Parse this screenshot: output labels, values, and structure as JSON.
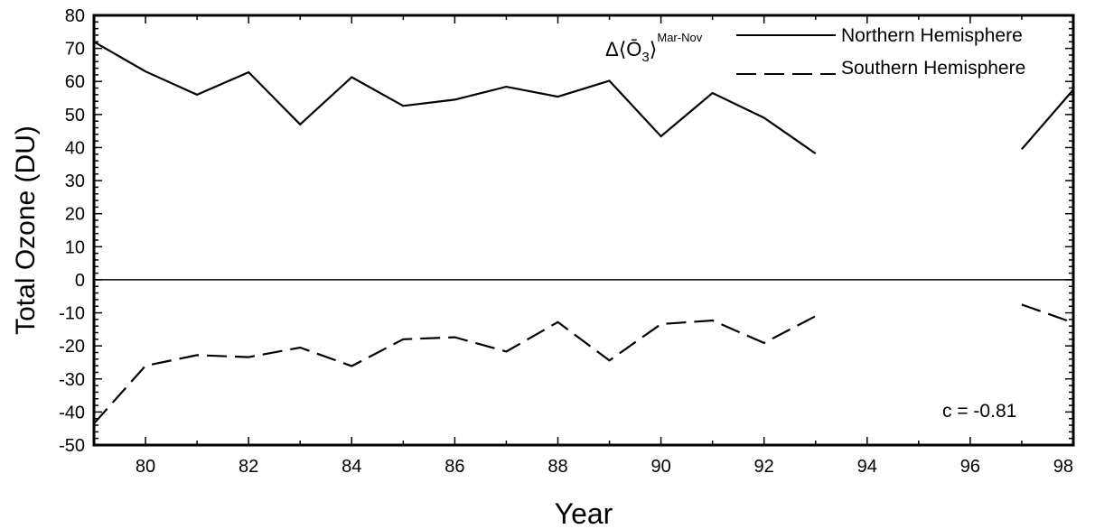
{
  "chart_data": {
    "type": "line",
    "xlabel": "Year",
    "ylabel": "Total Ozone (DU)",
    "xlim": [
      79,
      98
    ],
    "ylim": [
      -50,
      80
    ],
    "x_ticks": [
      "80",
      "82",
      "84",
      "86",
      "88",
      "90",
      "92",
      "94",
      "96",
      "98"
    ],
    "y_ticks": [
      "80",
      "70",
      "60",
      "50",
      "40",
      "30",
      "20",
      "10",
      "0",
      "-10",
      "-20",
      "-30",
      "-40",
      "-50"
    ],
    "zero_line": true,
    "grid": false,
    "legend_position": "top-right",
    "annotation": {
      "delta": "Δ",
      "bracket_open": "⟨",
      "bar_o": "Ō",
      "subscript": "3",
      "bracket_close": "⟩",
      "superscript": "Mar-Nov"
    },
    "correlation_label": "c = -0.81",
    "series": [
      {
        "name": "Northern Hemisphere",
        "style": "solid",
        "color": "#000000",
        "segments": [
          {
            "x": [
              79,
              80,
              81,
              82,
              83,
              84,
              85,
              86,
              87,
              88,
              89,
              90,
              91,
              92,
              93
            ],
            "y": [
              72,
              63,
              56,
              62.8,
              47,
              61.3,
              52.6,
              54.5,
              58.4,
              55.4,
              60.2,
              43.4,
              56.5,
              49,
              38.2
            ]
          },
          {
            "x": [
              97,
              98
            ],
            "y": [
              39.5,
              57.5
            ]
          }
        ]
      },
      {
        "name": "Southern Hemisphere",
        "style": "dashed",
        "color": "#000000",
        "segments": [
          {
            "x": [
              79,
              80,
              81,
              82,
              83,
              84,
              85,
              86,
              87,
              88,
              89,
              90,
              91,
              92,
              93
            ],
            "y": [
              -43.5,
              -26,
              -22.8,
              -23.4,
              -20.5,
              -26.1,
              -18,
              -17.4,
              -21.7,
              -12.8,
              -24.4,
              -13.4,
              -12.3,
              -19.1,
              -11
            ]
          },
          {
            "x": [
              97,
              98
            ],
            "y": [
              -7.5,
              -13
            ]
          }
        ]
      }
    ]
  }
}
